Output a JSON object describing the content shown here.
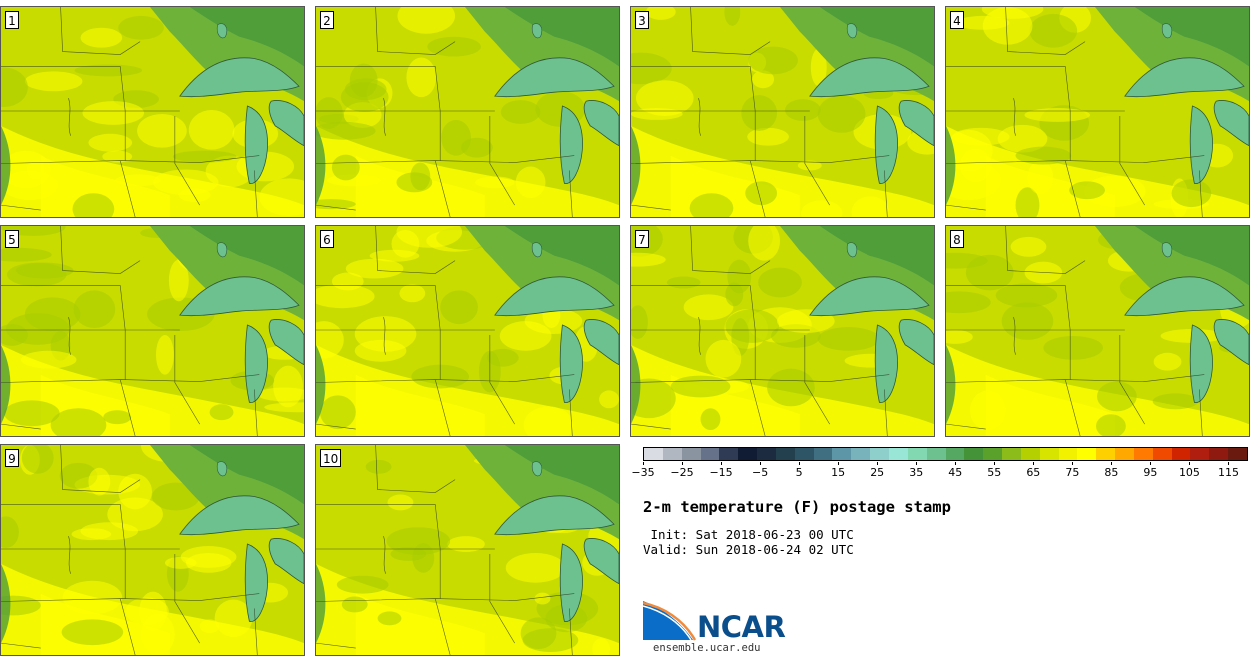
{
  "figure": {
    "title": "2-m temperature (F) postage stamp",
    "init": " Init: Sat 2018-06-23 00 UTC",
    "valid": "Valid: Sun 2018-06-24 02 UTC",
    "source_url": "ensemble.ucar.edu",
    "logo_text": "NCAR"
  },
  "panels": [
    {
      "label": "1"
    },
    {
      "label": "2"
    },
    {
      "label": "3"
    },
    {
      "label": "4"
    },
    {
      "label": "5"
    },
    {
      "label": "6"
    },
    {
      "label": "7"
    },
    {
      "label": "8"
    },
    {
      "label": "9"
    },
    {
      "label": "10"
    }
  ],
  "colorbar": {
    "min": -35,
    "max": 120,
    "step": 5,
    "tick_labels": [
      "−35",
      "−25",
      "−15",
      "−5",
      "5",
      "15",
      "25",
      "35",
      "45",
      "55",
      "65",
      "75",
      "85",
      "95",
      "105",
      "115"
    ],
    "colors": [
      "#d9dde3",
      "#b1b7c0",
      "#8a93a0",
      "#66718a",
      "#2f3b55",
      "#0f1c33",
      "#1c2b3f",
      "#23404f",
      "#2d5566",
      "#3f6f80",
      "#5d96a6",
      "#78b3bb",
      "#8ecfcc",
      "#9ae6d6",
      "#82d8b0",
      "#6cc18f",
      "#55a861",
      "#449338",
      "#5aa12c",
      "#8cbc19",
      "#b4d000",
      "#d7e400",
      "#f2f200",
      "#ffff00",
      "#ffd000",
      "#ffa800",
      "#ff7a00",
      "#f04a00",
      "#d02400",
      "#b01e10",
      "#8e1a10",
      "#6a1a0e"
    ]
  },
  "colors": {
    "warm_yellow": "#ffff00",
    "field_yellow_green": "#c8dc00",
    "field_green": "#a8cc00",
    "cool_green": "#4f9e3a",
    "lake_teal": "#6cc18f",
    "ncar_blue": "#0a4f8c"
  }
}
